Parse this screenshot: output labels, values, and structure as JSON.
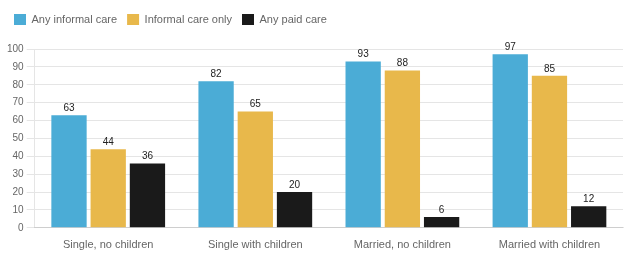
{
  "chart_data": {
    "type": "bar",
    "categories": [
      "Single, no children",
      "Single with children",
      "Married, no children",
      "Married with children"
    ],
    "series": [
      {
        "name": "Any informal care",
        "color": "#4BACD6",
        "values": [
          63,
          82,
          93,
          97
        ]
      },
      {
        "name": "Informal care only",
        "color": "#E8B84B",
        "values": [
          44,
          65,
          88,
          85
        ]
      },
      {
        "name": "Any paid care",
        "color": "#1A1A1A",
        "values": [
          36,
          20,
          6,
          12
        ]
      }
    ],
    "ylim": [
      0,
      100
    ],
    "yticks": [
      0,
      10,
      20,
      30,
      40,
      50,
      60,
      70,
      80,
      90,
      100
    ],
    "grid": true,
    "legend": "upper left",
    "data_labels": true
  }
}
